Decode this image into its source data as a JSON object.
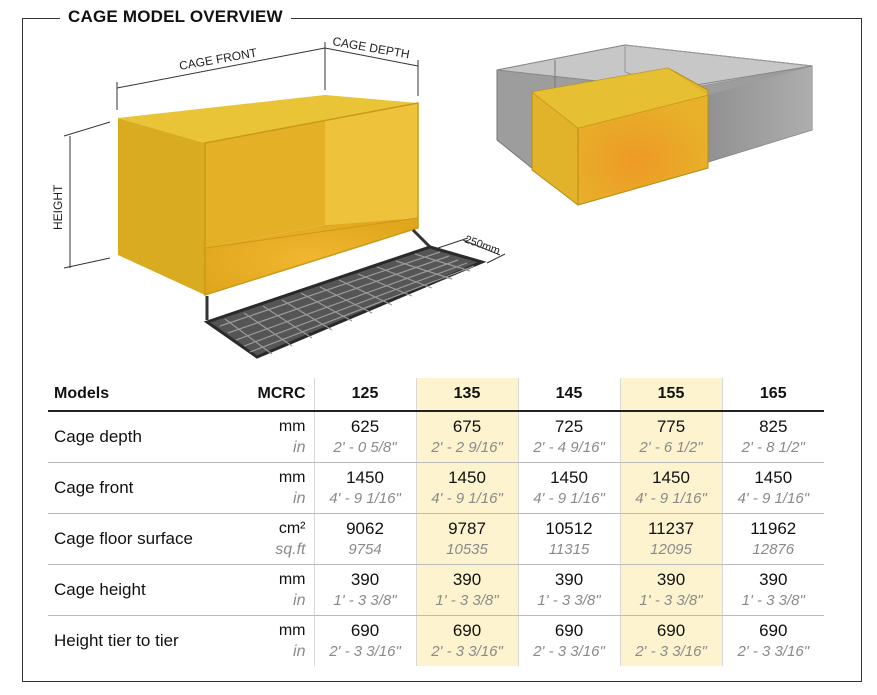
{
  "title": "CAGE MODEL OVERVIEW",
  "illustration": {
    "labels": {
      "cage_front": "CAGE FRONT",
      "cage_depth": "CAGE DEPTH",
      "height": "HEIGHT",
      "tray": "250mm"
    },
    "colors": {
      "cage": "#e5bf2a",
      "cage_side": "#d1a01d",
      "grey_cage": "#9b9b9b"
    }
  },
  "table": {
    "header": {
      "label": "Models",
      "unit_label": "MCRC",
      "models": [
        "125",
        "135",
        "145",
        "155",
        "165"
      ],
      "highlighted": [
        false,
        true,
        false,
        true,
        false
      ]
    },
    "rows": [
      {
        "label": "Cage depth",
        "unit_primary": "mm",
        "unit_secondary": "in",
        "primary": [
          "625",
          "675",
          "725",
          "775",
          "825"
        ],
        "secondary": [
          "2' - 0 5/8\"",
          "2' - 2 9/16\"",
          "2' - 4 9/16\"",
          "2' - 6 1/2\"",
          "2' - 8 1/2\""
        ]
      },
      {
        "label": "Cage front",
        "unit_primary": "mm",
        "unit_secondary": "in",
        "primary": [
          "1450",
          "1450",
          "1450",
          "1450",
          "1450"
        ],
        "secondary": [
          "4' - 9 1/16\"",
          "4' - 9 1/16\"",
          "4' - 9 1/16\"",
          "4' - 9 1/16\"",
          "4' - 9 1/16\""
        ]
      },
      {
        "label": "Cage floor surface",
        "unit_primary": "cm²",
        "unit_secondary": "sq.ft",
        "primary": [
          "9062",
          "9787",
          "10512",
          "11237",
          "11962"
        ],
        "secondary": [
          "9754",
          "10535",
          "11315",
          "12095",
          "12876"
        ]
      },
      {
        "label": "Cage height",
        "unit_primary": "mm",
        "unit_secondary": "in",
        "primary": [
          "390",
          "390",
          "390",
          "390",
          "390"
        ],
        "secondary": [
          "1' - 3 3/8\"",
          "1' - 3 3/8\"",
          "1' - 3 3/8\"",
          "1' - 3 3/8\"",
          "1' - 3 3/8\""
        ]
      },
      {
        "label": "Height tier to tier",
        "unit_primary": "mm",
        "unit_secondary": "in",
        "primary": [
          "690",
          "690",
          "690",
          "690",
          "690"
        ],
        "secondary": [
          "2' - 3 3/16\"",
          "2' - 3 3/16\"",
          "2' - 3 3/16\"",
          "2' - 3 3/16\"",
          "2' - 3 3/16\""
        ]
      }
    ]
  }
}
